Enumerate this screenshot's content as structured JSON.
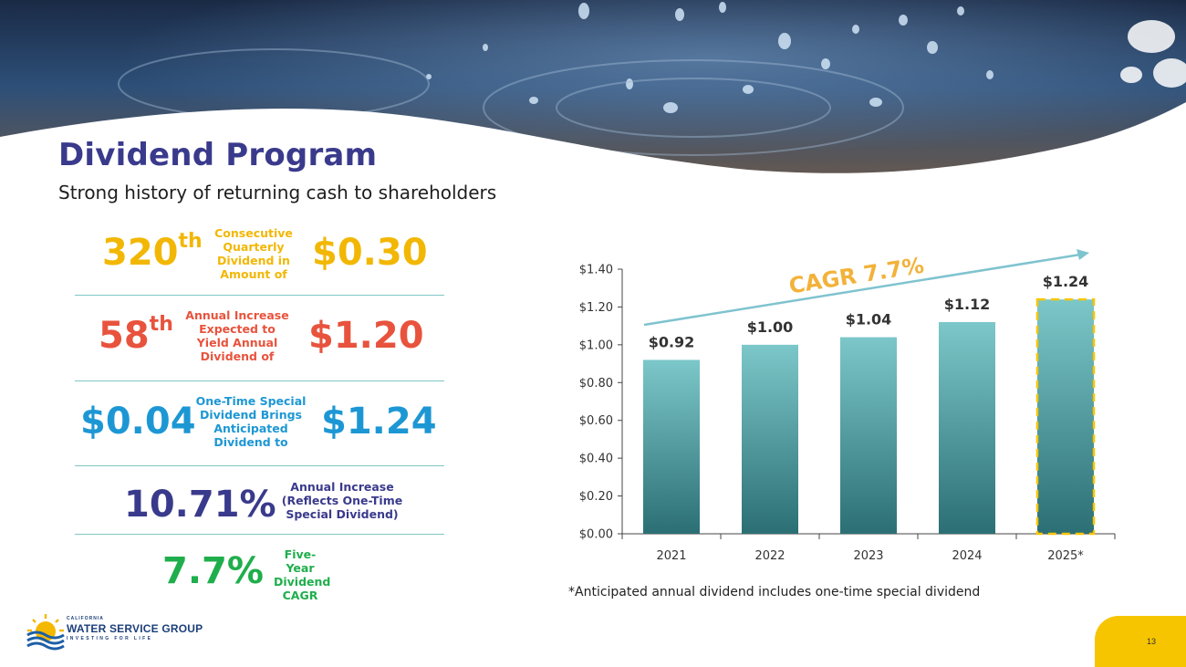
{
  "slide": {
    "title": "Dividend Program",
    "subtitle": "Strong history of returning cash to shareholders",
    "page_number": "13"
  },
  "stats": [
    {
      "value": "320",
      "suffix": "th",
      "desc_lines": [
        "Consecutive",
        "Quarterly",
        "Dividend in",
        "Amount of"
      ],
      "amount": "$0.30",
      "color": "#f2b705"
    },
    {
      "value": "58",
      "suffix": "th",
      "desc_lines": [
        "Annual Increase",
        "Expected to",
        "Yield Annual",
        "Dividend of"
      ],
      "amount": "$1.20",
      "color": "#e8533d"
    },
    {
      "value": "$0.04",
      "suffix": "",
      "desc_lines": [
        "One-Time Special",
        "Dividend Brings",
        "Anticipated",
        "Dividend to"
      ],
      "amount": "$1.24",
      "color": "#1d97d4"
    },
    {
      "value": "10.71%",
      "suffix": "",
      "desc_lines": [
        "Annual Increase",
        "(Reflects One-Time",
        "Special Dividend)"
      ],
      "amount": "",
      "color": "#3a3a8c"
    },
    {
      "value": "7.7%",
      "suffix": "",
      "desc_lines": [
        "Five-Year",
        "Dividend",
        "CAGR"
      ],
      "amount": "",
      "color": "#1fae4b"
    }
  ],
  "chart_data": {
    "type": "bar",
    "categories": [
      "2021",
      "2022",
      "2023",
      "2024",
      "2025*"
    ],
    "values": [
      0.92,
      1.0,
      1.04,
      1.12,
      1.24
    ],
    "value_labels": [
      "$0.92",
      "$1.00",
      "$1.04",
      "$1.12",
      "$1.24"
    ],
    "y_ticks": [
      "$0.00",
      "$0.20",
      "$0.40",
      "$0.60",
      "$0.80",
      "$1.00",
      "$1.20",
      "$1.40"
    ],
    "ylim": [
      0,
      1.4
    ],
    "annotation": "CAGR 7.7%",
    "highlighted_category": "2025*",
    "colors": {
      "bar_top": "#7cc7c9",
      "bar_bottom": "#2b6f74",
      "annotation": "#f2b23a",
      "arrow": "#7fc3cf",
      "highlight": "#f7c500"
    }
  },
  "footnote": "*Anticipated annual dividend includes one-time special dividend",
  "logo": {
    "top": "CALIFORNIA",
    "main": "WATER SERVICE GROUP",
    "tagline": "INVESTING FOR LIFE"
  }
}
